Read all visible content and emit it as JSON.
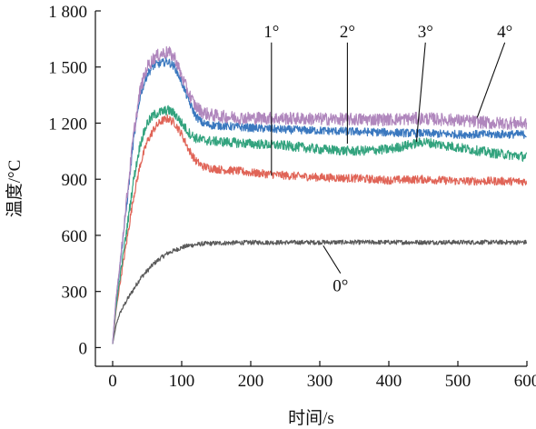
{
  "chart_data": {
    "type": "line",
    "xlabel": "时间/s",
    "ylabel": "温度/°C",
    "xlim": [
      -25,
      600
    ],
    "ylim": [
      -100,
      1800
    ],
    "xticks": [
      0,
      100,
      200,
      300,
      400,
      500,
      600
    ],
    "xtick_labels": [
      "0",
      "100",
      "200",
      "300",
      "400",
      "500",
      "600"
    ],
    "yticks": [
      0,
      300,
      600,
      900,
      1200,
      1500,
      1800
    ],
    "ytick_labels": [
      "0",
      "300",
      "600",
      "900",
      "1 200",
      "1 500",
      "1 800"
    ],
    "grid": false,
    "series": [
      {
        "name": "0°",
        "color": "#5a5a5a",
        "x": [
          0,
          5,
          10,
          20,
          30,
          40,
          50,
          60,
          70,
          80,
          90,
          100,
          110,
          120,
          130,
          150,
          175,
          200,
          250,
          300,
          350,
          400,
          450,
          500,
          550,
          600
        ],
        "y": [
          20,
          120,
          180,
          250,
          310,
          370,
          410,
          450,
          480,
          505,
          520,
          535,
          545,
          550,
          555,
          558,
          560,
          562,
          562,
          563,
          563,
          563,
          563,
          563,
          563,
          563
        ]
      },
      {
        "name": "1°",
        "color": "#e06457",
        "x": [
          0,
          5,
          10,
          20,
          30,
          40,
          50,
          60,
          70,
          80,
          90,
          100,
          110,
          120,
          130,
          140,
          160,
          180,
          200,
          250,
          300,
          350,
          400,
          450,
          500,
          550,
          600
        ],
        "y": [
          20,
          200,
          330,
          560,
          800,
          980,
          1100,
          1170,
          1210,
          1225,
          1200,
          1140,
          1060,
          1000,
          970,
          960,
          950,
          945,
          935,
          920,
          910,
          905,
          895,
          900,
          890,
          890,
          888
        ]
      },
      {
        "name": "2°",
        "color": "#3a78bf",
        "x": [
          0,
          5,
          10,
          20,
          30,
          40,
          50,
          60,
          70,
          80,
          90,
          100,
          110,
          120,
          130,
          140,
          160,
          180,
          200,
          250,
          300,
          350,
          400,
          450,
          500,
          550,
          600
        ],
        "y": [
          20,
          260,
          420,
          750,
          1100,
          1350,
          1460,
          1510,
          1520,
          1530,
          1500,
          1420,
          1320,
          1240,
          1200,
          1190,
          1185,
          1180,
          1175,
          1165,
          1160,
          1155,
          1150,
          1145,
          1140,
          1140,
          1140
        ]
      },
      {
        "name": "3°",
        "color": "#33a37e",
        "x": [
          0,
          5,
          10,
          20,
          30,
          40,
          50,
          60,
          70,
          80,
          90,
          100,
          110,
          120,
          130,
          140,
          160,
          180,
          200,
          250,
          300,
          350,
          400,
          450,
          500,
          550,
          600
        ],
        "y": [
          20,
          220,
          360,
          620,
          890,
          1090,
          1200,
          1245,
          1260,
          1270,
          1250,
          1200,
          1150,
          1120,
          1110,
          1105,
          1100,
          1095,
          1090,
          1080,
          1060,
          1050,
          1060,
          1100,
          1070,
          1040,
          1020
        ]
      },
      {
        "name": "4°",
        "color": "#b087bd",
        "x": [
          0,
          5,
          10,
          20,
          30,
          40,
          50,
          60,
          70,
          80,
          90,
          100,
          110,
          120,
          130,
          140,
          160,
          180,
          200,
          250,
          300,
          350,
          400,
          450,
          500,
          550,
          600
        ],
        "y": [
          20,
          270,
          430,
          780,
          1130,
          1380,
          1500,
          1550,
          1570,
          1580,
          1550,
          1450,
          1360,
          1290,
          1260,
          1245,
          1235,
          1230,
          1228,
          1225,
          1222,
          1220,
          1220,
          1225,
          1215,
          1200,
          1200
        ]
      }
    ],
    "annotations": [
      {
        "text": "0°",
        "label_x": 330,
        "label_y": 300,
        "point_x": 305,
        "point_y": 545
      },
      {
        "text": "1°",
        "label_x": 230,
        "label_y": 1660,
        "point_x": 230,
        "point_y": 920
      },
      {
        "text": "2°",
        "label_x": 340,
        "label_y": 1660,
        "point_x": 340,
        "point_y": 1090
      },
      {
        "text": "3°",
        "label_x": 453,
        "label_y": 1660,
        "point_x": 440,
        "point_y": 1100
      },
      {
        "text": "4°",
        "label_x": 568,
        "label_y": 1660,
        "point_x": 528,
        "point_y": 1230
      }
    ]
  }
}
